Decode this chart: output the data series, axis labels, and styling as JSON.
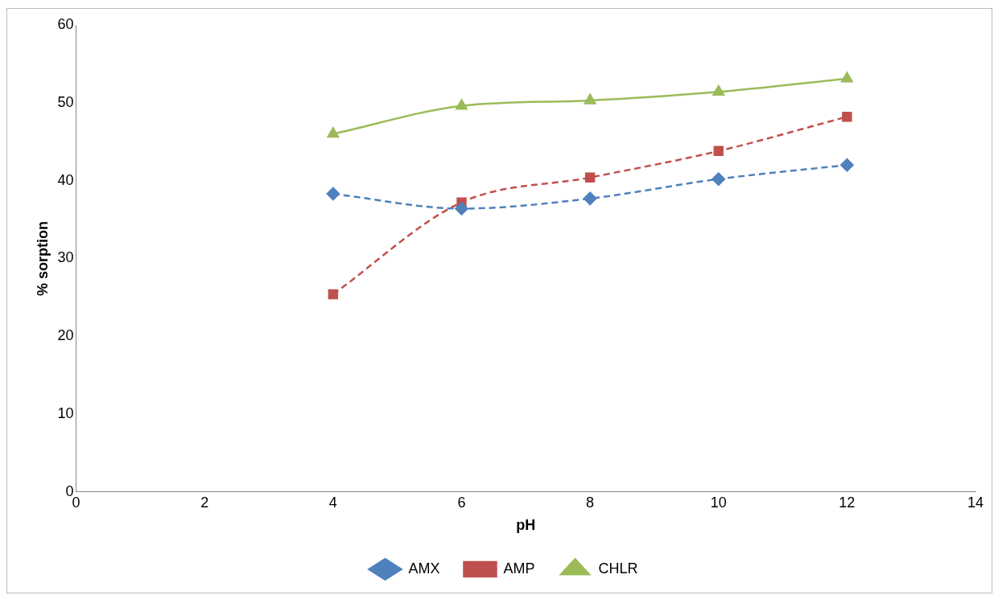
{
  "chart_data": {
    "type": "line",
    "xlabel": "pH",
    "ylabel": "% sorption",
    "x": [
      4,
      6,
      8,
      10,
      12
    ],
    "series": [
      {
        "name": "AMX",
        "color": "#4f81bd",
        "values": [
          38.3,
          36.4,
          37.7,
          40.2,
          42.0
        ],
        "marker": "diamond",
        "line_style": "dashed"
      },
      {
        "name": "AMP",
        "color": "#c0504d",
        "values": [
          25.4,
          37.2,
          40.4,
          43.8,
          48.2
        ],
        "marker": "square",
        "line_style": "dashed"
      },
      {
        "name": "CHLR",
        "color": "#9bbb59",
        "values": [
          46.0,
          49.6,
          50.3,
          51.4,
          53.1
        ],
        "marker": "triangle",
        "line_style": "solid"
      }
    ],
    "xlim": [
      0,
      14
    ],
    "xticks": [
      0,
      2,
      4,
      6,
      8,
      10,
      12,
      14
    ],
    "ylim": [
      0,
      60
    ],
    "yticks": [
      0,
      10,
      20,
      30,
      40,
      50,
      60
    ],
    "grid": false,
    "legend": "bottom"
  }
}
